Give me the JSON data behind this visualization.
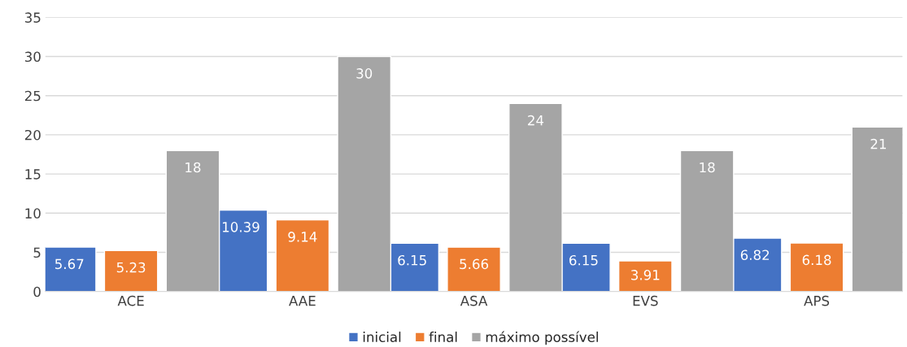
{
  "chart_data": {
    "type": "bar",
    "categories": [
      "ACE",
      "AAE",
      "ASA",
      "EVS",
      "APS"
    ],
    "series": [
      {
        "name": "inicial",
        "color": "#4472c4",
        "values": [
          5.67,
          10.39,
          6.15,
          6.15,
          6.82
        ]
      },
      {
        "name": "final",
        "color": "#ed7d31",
        "values": [
          5.23,
          9.14,
          5.66,
          3.91,
          6.18
        ]
      },
      {
        "name": "máximo possível",
        "color": "#a5a5a5",
        "values": [
          18,
          30,
          24,
          18,
          21
        ]
      }
    ],
    "ylim": [
      0,
      35
    ],
    "yticks": [
      0,
      5,
      10,
      15,
      20,
      25,
      30,
      35
    ],
    "grid": "y",
    "legend": "bottom",
    "data_labels": true
  }
}
